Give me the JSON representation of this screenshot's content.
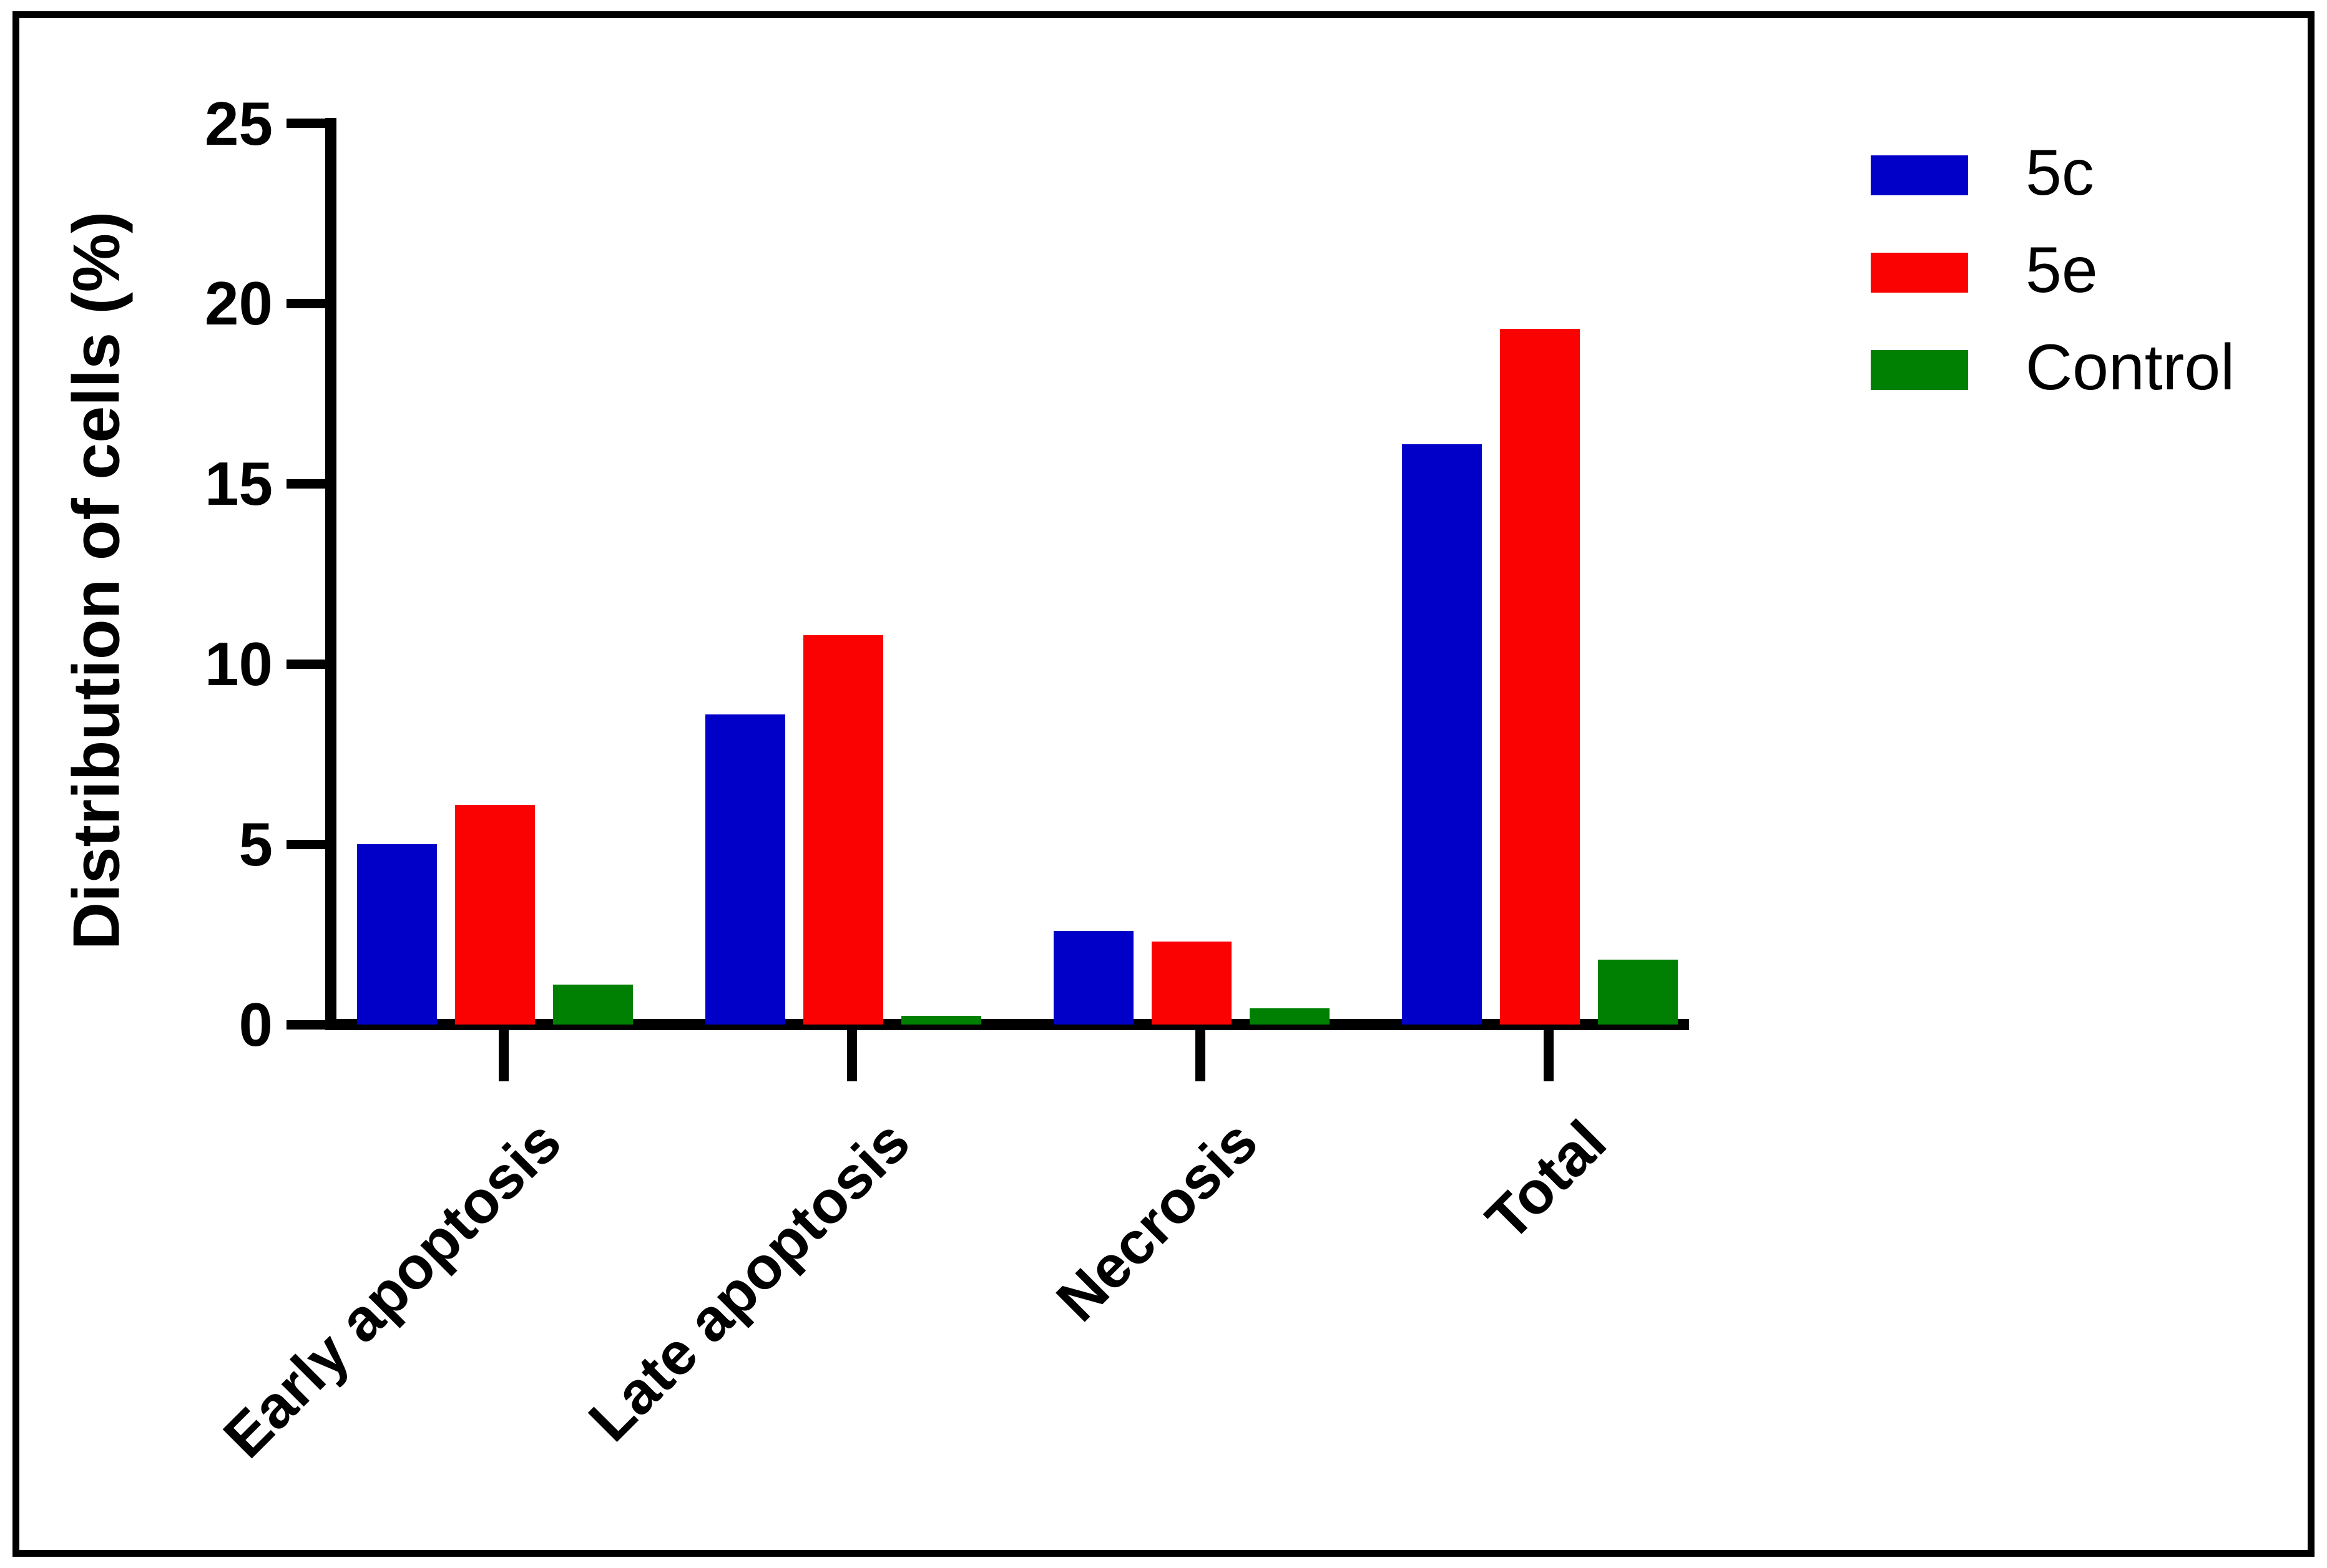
{
  "chart_data": {
    "type": "bar",
    "title": "",
    "ylabel": "Distribution of cells (%)",
    "xlabel": "",
    "ylim": [
      0,
      25
    ],
    "yticks": [
      0,
      5,
      10,
      15,
      20,
      25
    ],
    "categories": [
      "Early apoptosis",
      "Late apoptosis",
      "Necrosis",
      "Total"
    ],
    "series": [
      {
        "name": "5c",
        "color": "#0000C8",
        "values": [
          5.0,
          8.6,
          2.6,
          16.1
        ]
      },
      {
        "name": "5e",
        "color": "#FA0202",
        "values": [
          6.1,
          10.8,
          2.3,
          19.3
        ]
      },
      {
        "name": "Control",
        "color": "#008002",
        "values": [
          1.1,
          0.25,
          0.45,
          1.8
        ]
      }
    ],
    "legend": {
      "position": "top-right",
      "entries": [
        "5c",
        "5e",
        "Control"
      ]
    },
    "grid": false
  },
  "colors": {
    "background": "#FFFFFF",
    "frame_border": "#000000",
    "axis": "#000000",
    "text": "#000000"
  }
}
